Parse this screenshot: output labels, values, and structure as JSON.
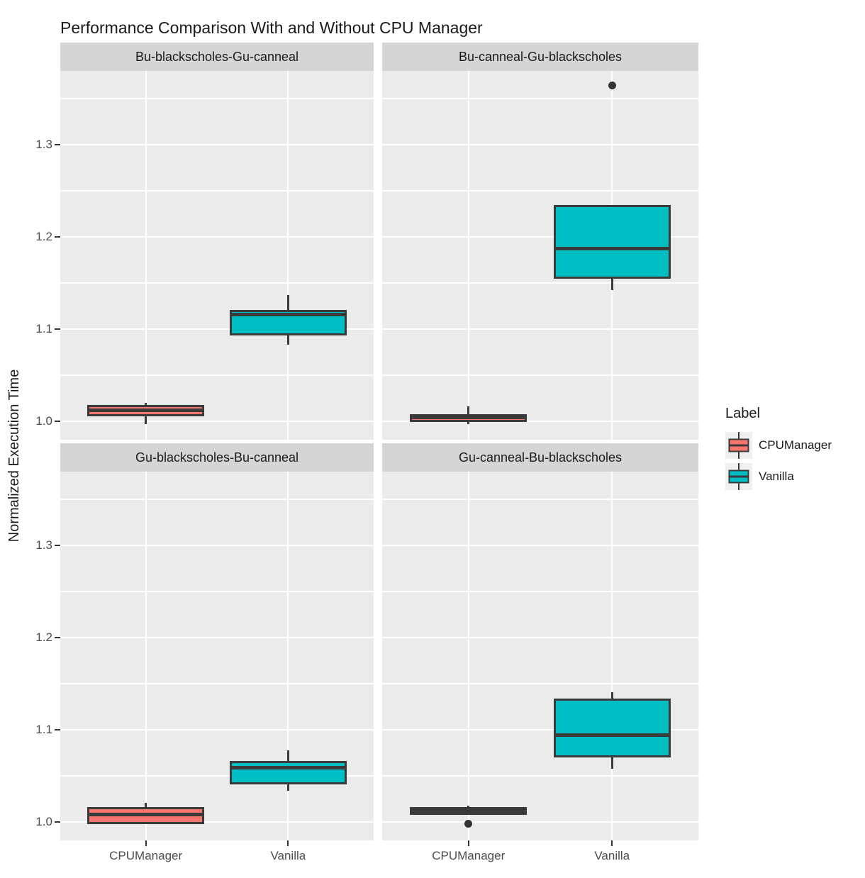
{
  "title": "Performance Comparison With and Without CPU Manager",
  "y_axis": {
    "label": "Normalized Execution Time",
    "ticks": [
      {
        "value": 1.3,
        "label": "1.3"
      },
      {
        "value": 1.2,
        "label": "1.2"
      },
      {
        "value": 1.1,
        "label": "1.1"
      },
      {
        "value": 1.0,
        "label": "1.0"
      }
    ],
    "minor_gridlines": [
      1.35,
      1.25,
      1.15,
      1.05
    ],
    "domain_top": 1.38,
    "domain_bottom": 0.98
  },
  "x_axis": {
    "categories": [
      "CPUManager",
      "Vanilla"
    ]
  },
  "legend": {
    "title": "Label",
    "entries": [
      {
        "label": "CPUManager",
        "color": "#F8766D"
      },
      {
        "label": "Vanilla",
        "color": "#00BFC4"
      }
    ]
  },
  "style": {
    "panel_bg": "#EBEBEB",
    "strip_bg": "#D5D5D5",
    "grid_color": "#FFFFFF",
    "box_border": "#3A3A3A",
    "axis_text": "#4D4D4D",
    "text": "#1A1A1A",
    "legend_key_bg": "#F0F0F0"
  },
  "chart_data": {
    "type": "boxplot",
    "title": "Performance Comparison With and Without CPU Manager",
    "ylabel": "Normalized Execution Time",
    "ylim": [
      0.98,
      1.38
    ],
    "grid": true,
    "legend_position": "right",
    "categories": [
      "CPUManager",
      "Vanilla"
    ],
    "series_colors": {
      "CPUManager": "#F8766D",
      "Vanilla": "#00BFC4"
    },
    "facets": [
      {
        "label": "Bu-blackscholes-Gu-canneal",
        "boxes": [
          {
            "group": "CPUManager",
            "whisker_low": 0.997,
            "q1": 1.005,
            "median": 1.012,
            "q3": 1.018,
            "whisker_high": 1.02,
            "outliers": []
          },
          {
            "group": "Vanilla",
            "whisker_low": 1.083,
            "q1": 1.093,
            "median": 1.116,
            "q3": 1.121,
            "whisker_high": 1.137,
            "outliers": []
          }
        ]
      },
      {
        "label": "Bu-canneal-Gu-blackscholes",
        "boxes": [
          {
            "group": "CPUManager",
            "whisker_low": 0.997,
            "q1": 0.999,
            "median": 1.004,
            "q3": 1.008,
            "whisker_high": 1.016,
            "outliers": []
          },
          {
            "group": "Vanilla",
            "whisker_low": 1.142,
            "q1": 1.155,
            "median": 1.187,
            "q3": 1.235,
            "whisker_high": 1.235,
            "outliers": [
              1.364
            ]
          }
        ]
      },
      {
        "label": "Gu-blackscholes-Bu-canneal",
        "boxes": [
          {
            "group": "CPUManager",
            "whisker_low": 0.998,
            "q1": 0.998,
            "median": 1.008,
            "q3": 1.016,
            "whisker_high": 1.021,
            "outliers": []
          },
          {
            "group": "Vanilla",
            "whisker_low": 1.034,
            "q1": 1.041,
            "median": 1.059,
            "q3": 1.066,
            "whisker_high": 1.078,
            "outliers": []
          }
        ]
      },
      {
        "label": "Gu-canneal-Bu-blackscholes",
        "boxes": [
          {
            "group": "CPUManager",
            "whisker_low": 1.008,
            "q1": 1.008,
            "median": 1.012,
            "q3": 1.016,
            "whisker_high": 1.018,
            "outliers": [
              0.998
            ]
          },
          {
            "group": "Vanilla",
            "whisker_low": 1.058,
            "q1": 1.07,
            "median": 1.094,
            "q3": 1.134,
            "whisker_high": 1.141,
            "outliers": []
          }
        ]
      }
    ]
  }
}
